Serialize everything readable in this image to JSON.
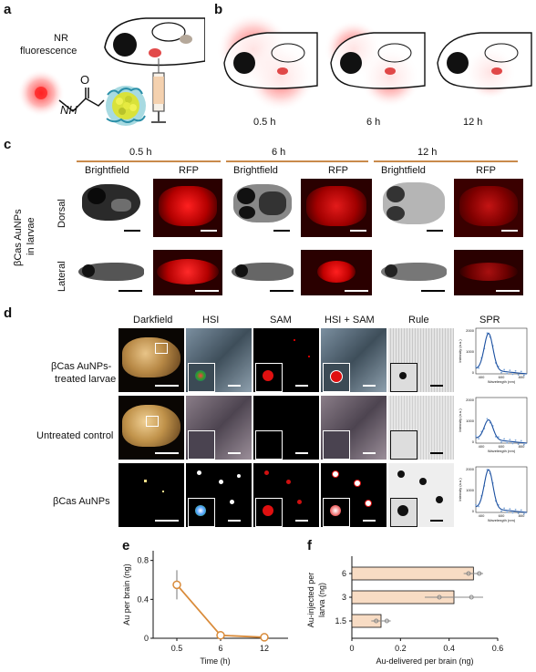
{
  "panels": {
    "a": "a",
    "b": "b",
    "c": "c",
    "d": "d",
    "e": "e",
    "f": "f"
  },
  "panel_a": {
    "nr_label_line1": "NR",
    "nr_label_line2": "fluorescence",
    "o_label": "O",
    "nh_label": "NH"
  },
  "panel_b": {
    "times": [
      "0.5 h",
      "6 h",
      "12 h"
    ]
  },
  "panel_c": {
    "times": [
      "0.5 h",
      "6 h",
      "12 h"
    ],
    "columns": [
      "Brightfield",
      "RFP"
    ],
    "side_label_line1": "βCas AuNPs",
    "side_label_line2": "in larvae",
    "rows": [
      "Dorsal",
      "Lateral"
    ]
  },
  "panel_d": {
    "columns": [
      "Darkfield",
      "HSI",
      "SAM",
      "HSI + SAM",
      "Rule",
      "SPR"
    ],
    "rows": [
      {
        "line1": "βCas AuNPs-",
        "line2": "treated larvae"
      },
      {
        "line1": "Untreated control",
        "line2": ""
      },
      {
        "line1": "βCas AuNPs",
        "line2": ""
      }
    ],
    "spr_ylabel": "Intensity (a.u.)",
    "spr_xlabel": "Wavelength (nm)",
    "spr_yticks": [
      "2000",
      "1000",
      "0"
    ],
    "spr_xticks": [
      "400",
      "600",
      "800"
    ]
  },
  "colors": {
    "accent_orange": "#d98b3a",
    "bar_fill": "#f8dcc4",
    "dark_red": "#d0101a"
  },
  "chart_data": [
    {
      "type": "line",
      "panel": "e",
      "x": [
        0.5,
        6,
        12
      ],
      "y": [
        0.55,
        0.03,
        0.01
      ],
      "yerr": [
        0.15,
        0.01,
        0.01
      ],
      "xticks": [
        "0.5",
        "6",
        "12"
      ],
      "yticks": [
        "0",
        "0.4",
        "0.8"
      ],
      "ylim": [
        0,
        0.9
      ],
      "xlabel": "Time (h)",
      "ylabel": "Au per brain (ng)"
    },
    {
      "type": "bar",
      "panel": "f",
      "orientation": "horizontal",
      "categories": [
        "6",
        "3",
        "1.5"
      ],
      "values": [
        0.5,
        0.42,
        0.12
      ],
      "errors": [
        0.04,
        0.12,
        0.04
      ],
      "xticks": [
        "0",
        "0.2",
        "0.4",
        "0.6"
      ],
      "xlim": [
        0,
        0.6
      ],
      "xlabel": "Au-delivered per brain (ng)",
      "ylabel_line1": "Au-injected per",
      "ylabel_line2": "larva (ng)"
    }
  ]
}
